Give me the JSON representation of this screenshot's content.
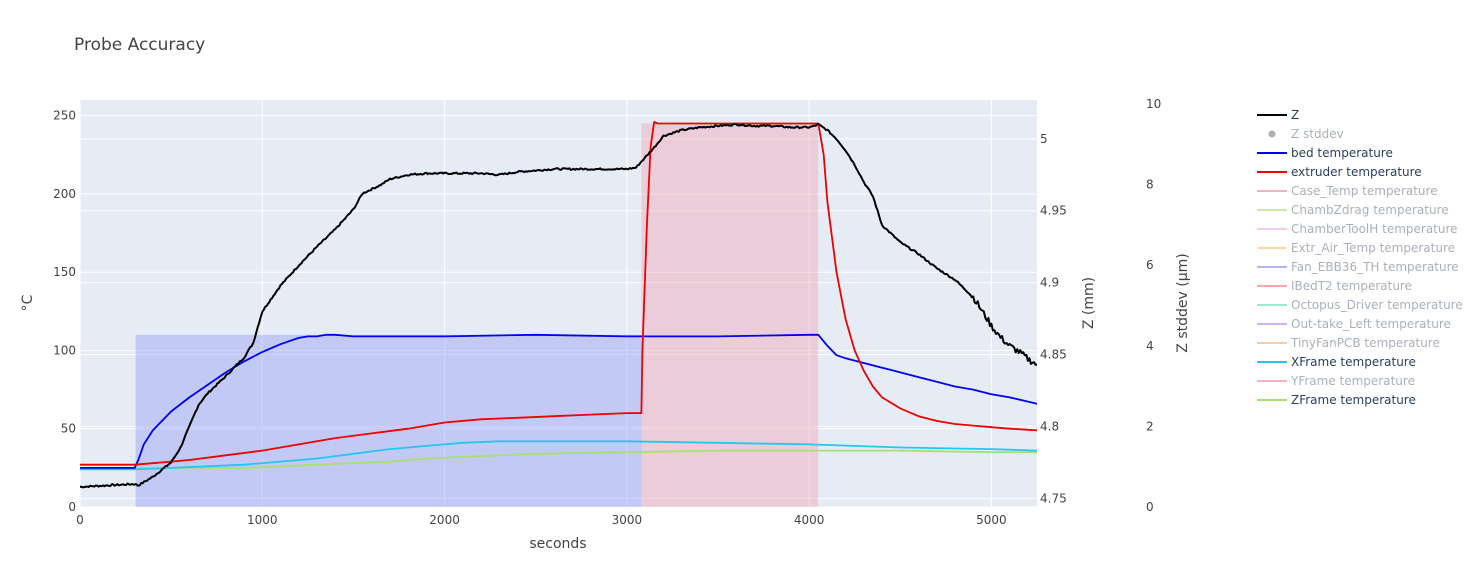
{
  "chart_data": {
    "type": "line",
    "title": "Probe Accuracy",
    "xlabel": "seconds",
    "ylabel_left": "°C",
    "ylabel_right1": "Z (mm)",
    "ylabel_right2": "Z stddev (µm)",
    "x_range": [
      0,
      5250
    ],
    "y_left_range": [
      0,
      260
    ],
    "y_z_range": [
      4.744,
      5.027
    ],
    "y_stddev_range": [
      0,
      10.1
    ],
    "x_ticks": [
      0,
      1000,
      2000,
      3000,
      4000,
      5000
    ],
    "x_tick_labels": [
      "0",
      "1000",
      "2000",
      "3000",
      "4000",
      "5000"
    ],
    "y_left_ticks": [
      0,
      50,
      100,
      150,
      200,
      250
    ],
    "y_left_tick_labels": [
      "0",
      "50",
      "100",
      "150",
      "200",
      "250"
    ],
    "y_z_ticks": [
      4.75,
      4.8,
      4.85,
      4.9,
      4.95,
      5.0
    ],
    "y_z_tick_labels": [
      "4.75",
      "4.8",
      "4.85",
      "4.9",
      "4.95",
      "5"
    ],
    "y_stddev_ticks": [
      0,
      2,
      4,
      6,
      8,
      10
    ],
    "y_stddev_tick_labels": [
      "0",
      "2",
      "4",
      "6",
      "8",
      "10"
    ],
    "grid": true,
    "legend_position": "right",
    "shaded_regions": [
      {
        "x": [
          305,
          3080
        ],
        "y": [
          0,
          110
        ],
        "color": "#9aa0f5",
        "opacity": 0.45
      },
      {
        "x": [
          3080,
          4050
        ],
        "y": [
          0,
          245
        ],
        "color": "#f2a8b8",
        "opacity": 0.45
      }
    ],
    "series": [
      {
        "name": "Z",
        "axis": "z",
        "color": "#000000",
        "visible": true,
        "jitter": true,
        "x": [
          0,
          300,
          320,
          400,
          500,
          550,
          600,
          650,
          700,
          800,
          900,
          950,
          1000,
          1100,
          1200,
          1300,
          1400,
          1500,
          1550,
          1650,
          1700,
          1800,
          1900,
          2000,
          2200,
          2300,
          2400,
          2500,
          2600,
          2700,
          2800,
          2900,
          3000,
          3050,
          3100,
          3150,
          3200,
          3300,
          3400,
          3500,
          3600,
          3700,
          3800,
          3900,
          4000,
          4030,
          4050,
          4100,
          4150,
          4200,
          4250,
          4300,
          4350,
          4400,
          4500,
          4600,
          4700,
          4800,
          4900,
          4950,
          5000,
          5050,
          5100,
          5150,
          5200,
          5250
        ],
        "y": [
          4.758,
          4.76,
          4.759,
          4.765,
          4.775,
          4.785,
          4.8,
          4.815,
          4.823,
          4.835,
          4.848,
          4.858,
          4.88,
          4.898,
          4.912,
          4.925,
          4.937,
          4.951,
          4.962,
          4.968,
          4.972,
          4.975,
          4.976,
          4.976,
          4.976,
          4.975,
          4.977,
          4.978,
          4.979,
          4.979,
          4.979,
          4.979,
          4.979,
          4.98,
          4.987,
          4.994,
          5.002,
          5.006,
          5.008,
          5.009,
          5.01,
          5.009,
          5.009,
          5.008,
          5.008,
          5.009,
          5.01,
          5.006,
          5.0,
          4.992,
          4.982,
          4.97,
          4.96,
          4.94,
          4.928,
          4.92,
          4.91,
          4.902,
          4.89,
          4.88,
          4.87,
          4.862,
          4.856,
          4.852,
          4.847,
          4.843
        ]
      },
      {
        "name": "Z stddev",
        "axis": "stddev",
        "color": "#b0b0b0",
        "visible": false,
        "marker": "dot"
      },
      {
        "name": "bed temperature",
        "axis": "left",
        "color": "#0000ee",
        "visible": true,
        "x": [
          0,
          300,
          320,
          350,
          400,
          500,
          600,
          700,
          800,
          900,
          1000,
          1100,
          1200,
          1250,
          1300,
          1350,
          1400,
          1500,
          2000,
          2500,
          3000,
          3500,
          4000,
          4050,
          4100,
          4150,
          4200,
          4300,
          4400,
          4500,
          4600,
          4700,
          4800,
          4900,
          5000,
          5100,
          5250
        ],
        "y": [
          25,
          25,
          30,
          40,
          49,
          61,
          70,
          78,
          86,
          93,
          99,
          104,
          108,
          109,
          109,
          110,
          110,
          109,
          109,
          110,
          109,
          109,
          110,
          110,
          103,
          97,
          95,
          92,
          89,
          86,
          83,
          80,
          77,
          75,
          72,
          70,
          66
        ]
      },
      {
        "name": "extruder temperature",
        "axis": "left",
        "color": "#ee0000",
        "visible": true,
        "x": [
          0,
          300,
          400,
          600,
          800,
          1000,
          1200,
          1400,
          1600,
          1800,
          2000,
          2200,
          2400,
          2600,
          2800,
          3000,
          3080,
          3085,
          3110,
          3130,
          3150,
          3170,
          3200,
          3500,
          3800,
          4000,
          4050,
          4080,
          4100,
          4150,
          4200,
          4250,
          4300,
          4350,
          4400,
          4500,
          4600,
          4700,
          4800,
          4900,
          5000,
          5100,
          5250
        ],
        "y": [
          27,
          27,
          28,
          30,
          33,
          36,
          40,
          44,
          47,
          50,
          54,
          56,
          57,
          58,
          59,
          60,
          60,
          100,
          180,
          230,
          246,
          245,
          245,
          245,
          245,
          245,
          245,
          225,
          195,
          150,
          120,
          100,
          87,
          77,
          70,
          63,
          58,
          55,
          53,
          52,
          51,
          50,
          49
        ]
      },
      {
        "name": "Case_Temp temperature",
        "axis": "left",
        "color": "#f5a9b8",
        "visible": false
      },
      {
        "name": "ChambZdrag temperature",
        "axis": "left",
        "color": "#c8e6a0",
        "visible": false
      },
      {
        "name": "ChamberToolH temperature",
        "axis": "left",
        "color": "#f0c8f0",
        "visible": false
      },
      {
        "name": "Extr_Air_Temp temperature",
        "axis": "left",
        "color": "#f5d890",
        "visible": false
      },
      {
        "name": "Fan_EBB36_TH temperature",
        "axis": "left",
        "color": "#a8b0f0",
        "visible": false
      },
      {
        "name": "IBedT2 temperature",
        "axis": "left",
        "color": "#f5a098",
        "visible": false
      },
      {
        "name": "Octopus_Driver temperature",
        "axis": "left",
        "color": "#90e8c8",
        "visible": false
      },
      {
        "name": "Out-take_Left temperature",
        "axis": "left",
        "color": "#c8a8f0",
        "visible": false
      },
      {
        "name": "TinyFanPCB temperature",
        "axis": "left",
        "color": "#f5c8a0",
        "visible": false
      },
      {
        "name": "XFrame temperature",
        "axis": "left",
        "color": "#22c8ee",
        "visible": true,
        "x": [
          0,
          300,
          500,
          700,
          900,
          1100,
          1300,
          1500,
          1700,
          1900,
          2100,
          2300,
          2500,
          3000,
          3500,
          4000,
          4500,
          5000,
          5250
        ],
        "y": [
          24,
          24,
          25,
          26,
          27,
          29,
          31,
          34,
          37,
          39,
          41,
          42,
          42,
          42,
          41,
          40,
          38,
          37,
          36
        ]
      },
      {
        "name": "YFrame temperature",
        "axis": "left",
        "color": "#f5a9b8",
        "visible": false
      },
      {
        "name": "ZFrame temperature",
        "axis": "left",
        "color": "#a8e070",
        "visible": true,
        "x": [
          0,
          300,
          500,
          700,
          900,
          1100,
          1300,
          1500,
          1700,
          1900,
          2100,
          2300,
          2500,
          3000,
          3500,
          4000,
          4500,
          5000,
          5250
        ],
        "y": [
          25,
          25,
          25,
          25,
          25,
          26,
          27,
          28,
          29,
          31,
          32,
          33,
          34,
          35,
          36,
          36,
          36,
          35,
          35
        ]
      }
    ]
  }
}
